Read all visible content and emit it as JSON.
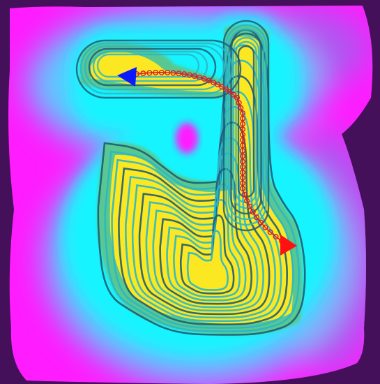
{
  "colors": {
    "background": "#ffffff",
    "outside": "#44105a",
    "magenta": "#ff1cff",
    "violet": "#b055f0",
    "sky": "#5ec8ff",
    "cyan": "#17f4ff",
    "contour": "#2ab6c8",
    "contour_dark": "#1f5c74",
    "green": "#58c890",
    "yellow": "#fbe823",
    "path": "#d81f26",
    "start_marker": "#0a1aff",
    "goal_marker": "#ff1111"
  },
  "markers": {
    "start": {
      "name": "start",
      "shape": "triangle",
      "color": "#0a1aff"
    },
    "goal": {
      "name": "goal",
      "shape": "triangle",
      "color": "#ff1111"
    }
  },
  "path": {
    "style": "dotted-circles",
    "color": "#d81f26"
  }
}
